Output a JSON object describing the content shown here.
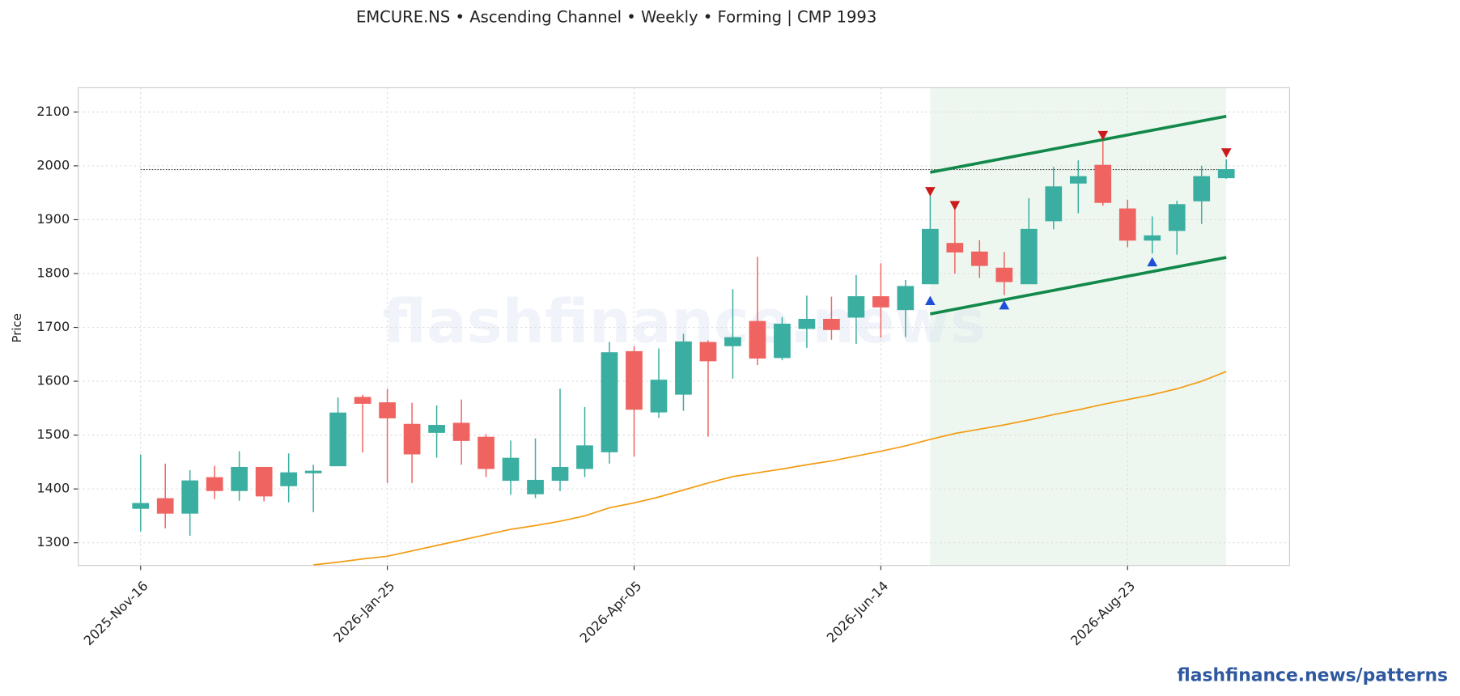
{
  "chart_data": {
    "type": "candlestick",
    "title": "EMCURE.NS  •  Ascending Channel  •  Weekly  •  Forming  |  CMP 1993",
    "ylabel": "Price",
    "watermark": "flashfinance.news",
    "footer": "flashfinance.news/patterns",
    "x": [
      "2025-Nov-16",
      "2025-Nov-23",
      "2025-Nov-30",
      "2025-Dec-07",
      "2025-Dec-14",
      "2025-Dec-21",
      "2025-Dec-28",
      "2026-Jan-04",
      "2026-Jan-11",
      "2026-Jan-18",
      "2026-Jan-25",
      "2026-Feb-01",
      "2026-Feb-08",
      "2026-Feb-15",
      "2026-Feb-22",
      "2026-Mar-01",
      "2026-Mar-08",
      "2026-Mar-15",
      "2026-Mar-22",
      "2026-Mar-29",
      "2026-Apr-05",
      "2026-Apr-12",
      "2026-Apr-19",
      "2026-Apr-26",
      "2026-May-03",
      "2026-May-10",
      "2026-May-17",
      "2026-May-24",
      "2026-May-31",
      "2026-Jun-07",
      "2026-Jun-14",
      "2026-Jun-21",
      "2026-Jun-28",
      "2026-Jul-05",
      "2026-Jul-12",
      "2026-Jul-19",
      "2026-Jul-26",
      "2026-Aug-02",
      "2026-Aug-09",
      "2026-Aug-16",
      "2026-Aug-23",
      "2026-Aug-30",
      "2026-Sep-06",
      "2026-Sep-13",
      "2026-Sep-20"
    ],
    "open": [
      1364,
      1382,
      1355,
      1421,
      1397,
      1440,
      1406,
      1430,
      1443,
      1570,
      1560,
      1520,
      1505,
      1522,
      1496,
      1416,
      1391,
      1416,
      1438,
      1469,
      1655,
      1543,
      1576,
      1672,
      1666,
      1711,
      1644,
      1698,
      1715,
      1719,
      1757,
      1733,
      1781,
      1856,
      1840,
      1810,
      1781,
      1898,
      1968,
      2001,
      1920,
      1862,
      1880,
      1935,
      1978
    ],
    "high": [
      1464,
      1447,
      1435,
      1443,
      1470,
      1440,
      1466,
      1445,
      1570,
      1575,
      1586,
      1560,
      1555,
      1566,
      1502,
      1490,
      1494,
      1586,
      1552,
      1673,
      1665,
      1661,
      1688,
      1676,
      1771,
      1831,
      1719,
      1759,
      1757,
      1797,
      1819,
      1788,
      1950,
      1920,
      1862,
      1840,
      1940,
      1998,
      2010,
      2050,
      1937,
      1906,
      1935,
      2000,
      2012
    ],
    "low": [
      1321,
      1327,
      1313,
      1381,
      1378,
      1377,
      1375,
      1357,
      1443,
      1468,
      1411,
      1411,
      1458,
      1445,
      1422,
      1389,
      1383,
      1396,
      1422,
      1447,
      1460,
      1532,
      1545,
      1497,
      1605,
      1630,
      1639,
      1662,
      1677,
      1669,
      1681,
      1682,
      1781,
      1800,
      1792,
      1760,
      1781,
      1882,
      1912,
      1926,
      1849,
      1837,
      1835,
      1892,
      1976
    ],
    "close": [
      1373,
      1355,
      1415,
      1397,
      1440,
      1387,
      1430,
      1433,
      1541,
      1559,
      1532,
      1465,
      1518,
      1490,
      1438,
      1457,
      1416,
      1440,
      1480,
      1653,
      1548,
      1602,
      1673,
      1638,
      1681,
      1643,
      1706,
      1715,
      1696,
      1757,
      1738,
      1776,
      1882,
      1840,
      1815,
      1785,
      1882,
      1961,
      1980,
      1932,
      1862,
      1870,
      1928,
      1980,
      1993
    ],
    "up_color": "#3aaea0",
    "down_color": "#ef6461",
    "moving_average": {
      "color": "#f39c12",
      "values": [
        null,
        null,
        null,
        null,
        null,
        null,
        null,
        1259,
        1264,
        1270,
        1275,
        1285,
        1295,
        1305,
        1315,
        1325,
        1332,
        1340,
        1350,
        1365,
        1374,
        1385,
        1398,
        1411,
        1423,
        1430,
        1437,
        1445,
        1452,
        1461,
        1470,
        1480,
        1492,
        1503,
        1511,
        1519,
        1528,
        1538,
        1547,
        1557,
        1566,
        1575,
        1586,
        1600,
        1618
      ]
    },
    "channel_color": "#12894a",
    "channel_upper": {
      "x": [
        "2026-Jun-28",
        "2026-Sep-20"
      ],
      "values": [
        1988,
        2092
      ]
    },
    "channel_lower": {
      "x": [
        "2026-Jun-28",
        "2026-Sep-20"
      ],
      "values": [
        1725,
        1830
      ]
    },
    "highlight_range": [
      "2026-Jun-28",
      "2026-Sep-20"
    ],
    "cmp_line": 1993,
    "peaks": {
      "color": "#cc1a1a",
      "x": [
        "2026-Jun-28",
        "2026-Jul-05",
        "2026-Aug-16",
        "2026-Sep-20"
      ],
      "values": [
        1952,
        1926,
        2056,
        2024
      ]
    },
    "troughs": {
      "color": "#1f4fd6",
      "x": [
        "2026-Jun-28",
        "2026-Jul-19",
        "2026-Aug-30"
      ],
      "values": [
        1750,
        1742,
        1822
      ]
    },
    "xticks": [
      "2025-Nov-16",
      "2026-Jan-25",
      "2026-Apr-05",
      "2026-Jun-14",
      "2026-Aug-23"
    ],
    "ylim": [
      1258,
      2145
    ],
    "yticks": [
      1300,
      1400,
      1500,
      1600,
      1700,
      1800,
      1900,
      2000,
      2100
    ],
    "grid": true
  }
}
